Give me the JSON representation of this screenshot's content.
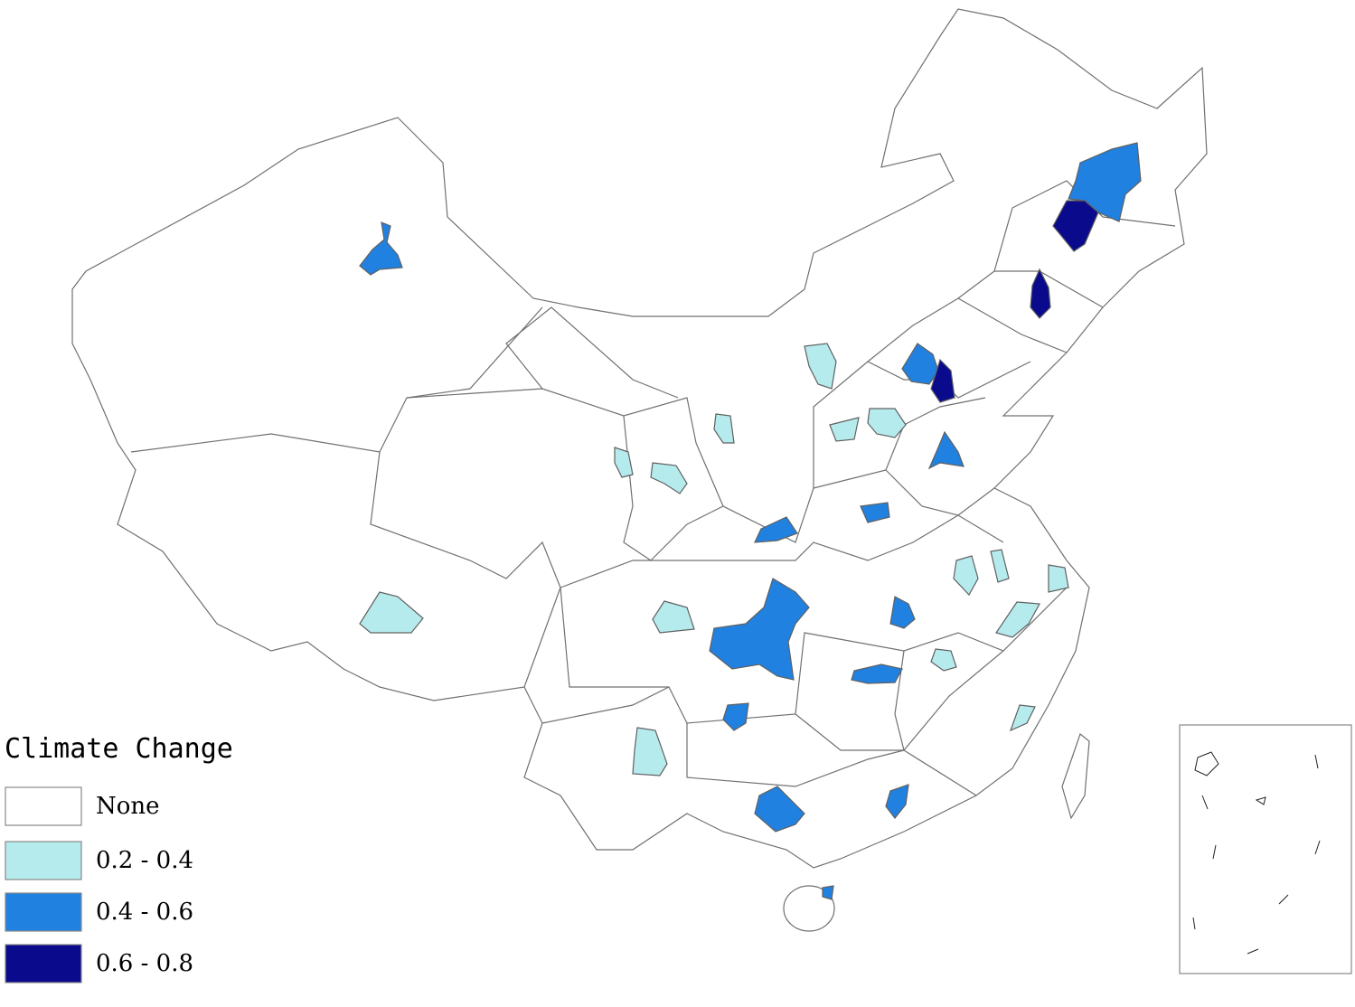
{
  "legend": {
    "title": "Climate Change",
    "items": [
      {
        "label": "None",
        "color": "#ffffff"
      },
      {
        "label": "0.2 - 0.4",
        "color": "#b6ebee"
      },
      {
        "label": "0.4 - 0.6",
        "color": "#2181e0"
      },
      {
        "label": "0.6 - 0.8",
        "color": "#0a0a8c"
      }
    ]
  }
}
